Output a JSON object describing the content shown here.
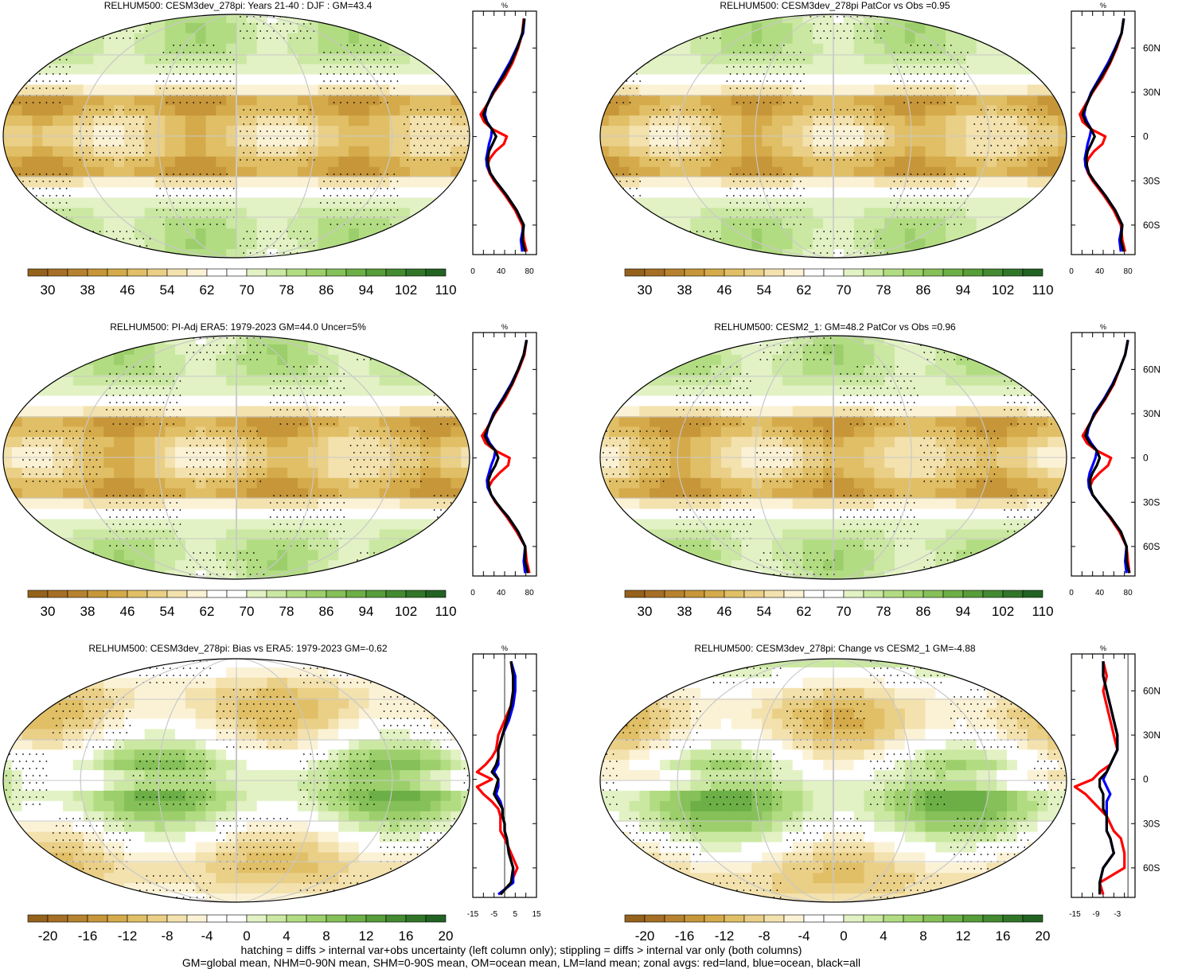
{
  "footer": {
    "line1": "hatching = diffs > internal var+obs uncertainty (left column only); stippling = diffs > internal var only (both columns)",
    "line2": "GM=global mean, NHM=0-90N mean, SHM=0-90S mean, OM=ocean mean, LM=land mean; zonal avgs: red=land, blue=ocean, black=all"
  },
  "colors": {
    "land": "#ff0000",
    "ocean": "#0000ff",
    "all": "#000000",
    "missing": "#cccccc",
    "brown_to_green": [
      "#95621c",
      "#a66f25",
      "#b7822f",
      "#c69639",
      "#d5aa4a",
      "#e0bf66",
      "#eacf87",
      "#f3e2ae",
      "#fbf2d6",
      "#ffffff",
      "#ffffff",
      "#e2f2c4",
      "#cbe8a2",
      "#b2dc82",
      "#9ccf6b",
      "#85c058",
      "#6daf47",
      "#579d3a",
      "#438a31",
      "#317628",
      "#226222"
    ]
  },
  "chart_data": [
    {
      "type": "heatmap",
      "title": "RELHUM500: CESM3dev_278pi: Years 21-40 : DJF : GM=43.4",
      "colorbar_ticks": [
        "30",
        "38",
        "46",
        "54",
        "62",
        "70",
        "78",
        "86",
        "94",
        "102",
        "110"
      ],
      "profile": {
        "unit": "%",
        "x_ticks": [
          "0",
          "40",
          "80"
        ],
        "xlim": [
          0,
          90
        ],
        "lat_ticks": [
          "60N",
          "30N",
          "0",
          "30S",
          "60S"
        ],
        "lat_values": [
          60,
          30,
          0,
          -30,
          -60
        ],
        "ylim": [
          -80,
          85
        ],
        "lat": [
          80,
          70,
          60,
          50,
          40,
          30,
          20,
          15,
          10,
          5,
          0,
          -5,
          -10,
          -15,
          -20,
          -25,
          -30,
          -35,
          -40,
          -50,
          -60,
          -70,
          -78
        ],
        "series": [
          {
            "name": "land",
            "values": [
              72,
              70,
              64,
              56,
              45,
              30,
              18,
              11,
              16,
              28,
              48,
              44,
              32,
              24,
              20,
              24,
              30,
              38,
              46,
              60,
              70,
              72,
              76
            ]
          },
          {
            "name": "ocean",
            "values": [
              73,
              71,
              62,
              52,
              40,
              28,
              19,
              17,
              20,
              27,
              26,
              23,
              21,
              19,
              20,
              25,
              32,
              40,
              48,
              62,
              72,
              68,
              70
            ]
          },
          {
            "name": "all",
            "values": [
              73,
              70,
              63,
              54,
              42,
              29,
              19,
              15,
              19,
              27,
              33,
              28,
              23,
              21,
              22,
              25,
              32,
              40,
              48,
              62,
              72,
              70,
              74
            ]
          }
        ]
      }
    },
    {
      "type": "heatmap",
      "title": "RELHUM500: CESM3dev_278pi PatCor vs Obs =0.95",
      "colorbar_ticks": [
        "30",
        "38",
        "46",
        "54",
        "62",
        "70",
        "78",
        "86",
        "94",
        "102",
        "110"
      ],
      "profile": {
        "unit": "%",
        "x_ticks": [
          "0",
          "40",
          "80"
        ],
        "xlim": [
          0,
          90
        ],
        "lat_ticks": [
          "60N",
          "30N",
          "0",
          "30S",
          "60S"
        ],
        "lat_values": [
          60,
          30,
          0,
          -30,
          -60
        ],
        "ylim": [
          -80,
          85
        ],
        "lat": [
          80,
          70,
          60,
          50,
          40,
          30,
          20,
          15,
          10,
          5,
          0,
          -5,
          -10,
          -15,
          -20,
          -25,
          -30,
          -35,
          -40,
          -50,
          -60,
          -70,
          -78
        ],
        "series": [
          {
            "name": "land",
            "values": [
              74,
              71,
              64,
              55,
              44,
              30,
              18,
              12,
              16,
              28,
              48,
              44,
              32,
              24,
              20,
              24,
              30,
              38,
              46,
              60,
              70,
              72,
              76
            ]
          },
          {
            "name": "ocean",
            "values": [
              74,
              71,
              62,
              52,
              40,
              28,
              20,
              18,
              22,
              28,
              26,
              23,
              21,
              19,
              20,
              25,
              32,
              40,
              48,
              62,
              72,
              68,
              70
            ]
          },
          {
            "name": "all",
            "values": [
              74,
              71,
              63,
              54,
              42,
              29,
              20,
              16,
              20,
              28,
              33,
              28,
              23,
              21,
              22,
              25,
              32,
              40,
              48,
              62,
              72,
              70,
              74
            ]
          }
        ]
      }
    },
    {
      "type": "heatmap",
      "title": "RELHUM500: PI-Adj ERA5: 1979-2023 GM=44.0 Uncer=5%",
      "colorbar_ticks": [
        "30",
        "38",
        "46",
        "54",
        "62",
        "70",
        "78",
        "86",
        "94",
        "102",
        "110"
      ],
      "profile": {
        "unit": "%",
        "x_ticks": [
          "0",
          "40",
          "80"
        ],
        "xlim": [
          0,
          90
        ],
        "lat_ticks": [
          "60N",
          "30N",
          "0",
          "30S",
          "60S"
        ],
        "lat_values": [
          60,
          30,
          0,
          -30,
          -60
        ],
        "ylim": [
          -80,
          85
        ],
        "lat": [
          80,
          70,
          60,
          50,
          40,
          30,
          20,
          15,
          10,
          5,
          0,
          -5,
          -10,
          -15,
          -20,
          -25,
          -30,
          -35,
          -40,
          -50,
          -60,
          -70,
          -78
        ],
        "series": [
          {
            "name": "land",
            "values": [
              76,
              73,
              65,
              56,
              45,
              31,
              20,
              13,
              18,
              32,
              52,
              50,
              38,
              28,
              22,
              26,
              32,
              40,
              48,
              62,
              74,
              76,
              80
            ]
          },
          {
            "name": "ocean",
            "values": [
              76,
              72,
              64,
              54,
              42,
              29,
              21,
              19,
              24,
              32,
              30,
              26,
              23,
              20,
              21,
              26,
              33,
              41,
              50,
              64,
              74,
              72,
              74
            ]
          },
          {
            "name": "all",
            "values": [
              76,
              72,
              64,
              55,
              43,
              30,
              21,
              17,
              22,
              32,
              36,
              32,
              26,
              22,
              23,
              26,
              33,
              41,
              50,
              64,
              74,
              74,
              78
            ]
          }
        ]
      }
    },
    {
      "type": "heatmap",
      "title": "RELHUM500: CESM2_1: GM=48.2 PatCor vs Obs =0.96",
      "colorbar_ticks": [
        "30",
        "38",
        "46",
        "54",
        "62",
        "70",
        "78",
        "86",
        "94",
        "102",
        "110"
      ],
      "profile": {
        "unit": "%",
        "x_ticks": [
          "0",
          "40",
          "80"
        ],
        "xlim": [
          0,
          90
        ],
        "lat_ticks": [
          "60N",
          "30N",
          "0",
          "30S",
          "60S"
        ],
        "lat_values": [
          60,
          30,
          0,
          -30,
          -60
        ],
        "ylim": [
          -80,
          85
        ],
        "lat": [
          80,
          70,
          60,
          50,
          40,
          30,
          20,
          15,
          10,
          5,
          0,
          -5,
          -10,
          -15,
          -20,
          -25,
          -30,
          -35,
          -40,
          -50,
          -60,
          -70,
          -78
        ],
        "series": [
          {
            "name": "land",
            "values": [
              80,
              76,
              68,
              60,
              48,
              34,
              22,
              16,
              22,
              36,
              56,
              52,
              40,
              30,
              26,
              30,
              38,
              46,
              54,
              68,
              78,
              80,
              82
            ]
          },
          {
            "name": "ocean",
            "values": [
              80,
              76,
              68,
              58,
              46,
              32,
              24,
              22,
              28,
              36,
              34,
              30,
              26,
              24,
              25,
              30,
              38,
              46,
              55,
              70,
              78,
              76,
              78
            ]
          },
          {
            "name": "all",
            "values": [
              80,
              76,
              68,
              59,
              47,
              33,
              23,
              20,
              26,
              36,
              40,
              36,
              30,
              26,
              27,
              30,
              38,
              46,
              55,
              70,
              78,
              78,
              82
            ]
          }
        ]
      }
    },
    {
      "type": "heatmap",
      "title": "RELHUM500: CESM3dev_278pi: Bias vs ERA5: 1979-2023 GM=-0.62",
      "colorbar_ticks": [
        "-20",
        "-16",
        "-12",
        "-8",
        "-4",
        "0",
        "4",
        "8",
        "12",
        "16",
        "20"
      ],
      "profile": {
        "unit": "%",
        "x_ticks": [
          "-15",
          "-5",
          "5",
          "15"
        ],
        "xlim": [
          -15,
          15
        ],
        "lat_ticks": [
          "60N",
          "30N",
          "0",
          "30S",
          "60S"
        ],
        "lat_values": [
          60,
          30,
          0,
          -30,
          -60
        ],
        "ylim": [
          -80,
          85
        ],
        "lat": [
          80,
          70,
          60,
          50,
          40,
          30,
          20,
          15,
          10,
          5,
          0,
          -5,
          -10,
          -15,
          -20,
          -25,
          -30,
          -35,
          -40,
          -50,
          -60,
          -70,
          -78
        ],
        "series": [
          {
            "name": "land",
            "values": [
              3,
              4,
              4,
              3,
              0,
              -3,
              -4,
              -6,
              -9,
              -13,
              -6,
              -13,
              -10,
              -6,
              -3,
              -2,
              -2,
              -2,
              0,
              3,
              6,
              3,
              -2
            ]
          },
          {
            "name": "ocean",
            "values": [
              3,
              5,
              5,
              4,
              2,
              -1,
              -3,
              -3,
              -3,
              -5,
              -3,
              -3,
              -4,
              -2,
              -1,
              -1,
              0,
              0,
              1,
              2,
              4,
              4,
              -3
            ]
          },
          {
            "name": "all",
            "values": [
              3,
              4,
              4,
              3,
              1,
              -1,
              -3,
              -3,
              -4,
              -6,
              -3,
              -4,
              -5,
              -3,
              -1,
              -1,
              0,
              0,
              1,
              2,
              4,
              3,
              -2
            ]
          }
        ]
      }
    },
    {
      "type": "heatmap",
      "title": "RELHUM500: CESM3dev_278pi: Change vs CESM2_1 GM=-4.88",
      "colorbar_ticks": [
        "-20",
        "-16",
        "-12",
        "-8",
        "-4",
        "0",
        "4",
        "8",
        "12",
        "16",
        "20"
      ],
      "profile": {
        "unit": "%",
        "x_ticks": [
          "-15",
          "-9",
          "-3"
        ],
        "xlim": [
          -16,
          2
        ],
        "lat_ticks": [
          "60N",
          "30N",
          "0",
          "30S",
          "60S"
        ],
        "lat_values": [
          60,
          30,
          0,
          -30,
          -60
        ],
        "ylim": [
          -80,
          85
        ],
        "lat": [
          80,
          70,
          60,
          50,
          40,
          30,
          20,
          15,
          10,
          5,
          0,
          -5,
          -10,
          -15,
          -20,
          -25,
          -30,
          -35,
          -40,
          -50,
          -60,
          -70,
          -78
        ],
        "series": [
          {
            "name": "land",
            "values": [
              -7,
              -6,
              -7,
              -6,
              -5,
              -4,
              -3,
              -4,
              -5,
              -8,
              -10,
              -15,
              -12,
              -10,
              -8,
              -6,
              -5,
              -4,
              -2,
              -1,
              -1,
              -8,
              -7
            ]
          },
          {
            "name": "ocean",
            "values": [
              -7,
              -7,
              -6,
              -5,
              -4,
              -3,
              -3,
              -4,
              -5,
              -6,
              -7,
              -6,
              -5,
              -6,
              -6,
              -6,
              -6,
              -6,
              -5,
              -4,
              -7,
              -8,
              -8
            ]
          },
          {
            "name": "all",
            "values": [
              -7,
              -7,
              -6,
              -5,
              -4,
              -3,
              -3,
              -4,
              -5,
              -6,
              -8,
              -8,
              -7,
              -7,
              -7,
              -6,
              -6,
              -6,
              -5,
              -4,
              -7,
              -8,
              -8
            ]
          }
        ]
      }
    }
  ]
}
